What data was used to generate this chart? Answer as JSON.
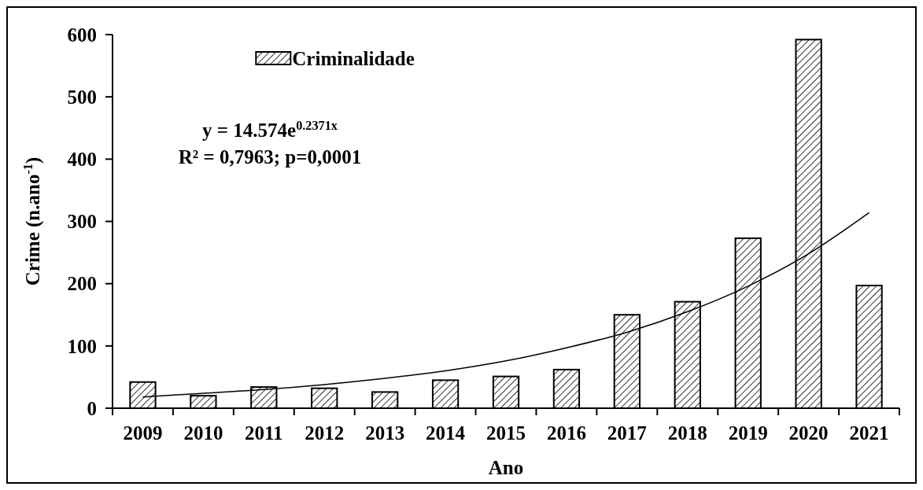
{
  "chart_data": {
    "type": "bar",
    "xlabel": "Ano",
    "ylabel": "Crime (n.ano$^{-1}$)",
    "categories": [
      "2009",
      "2010",
      "2011",
      "2012",
      "2013",
      "2014",
      "2015",
      "2016",
      "2017",
      "2018",
      "2019",
      "2020",
      "2021"
    ],
    "series": [
      {
        "name": "Criminalidade",
        "color": "#000000",
        "values": [
          42,
          20,
          34,
          32,
          26,
          45,
          51,
          62,
          150,
          171,
          273,
          592,
          197
        ]
      },
      {
        "type": "line",
        "color": "#000000",
        "values": [
          18,
          24,
          30,
          38,
          48,
          60,
          76,
          97,
          122,
          155,
          196,
          248,
          314
        ]
      }
    ],
    "ylim": [
      0,
      600
    ],
    "yticks": [
      0,
      100,
      200,
      300,
      400,
      500,
      600
    ],
    "grid": false,
    "legend": "top left",
    "annotations": [
      "y = 14.574e$^{0.2371x}$",
      "R² = 0,7963; p=0,0001"
    ]
  }
}
